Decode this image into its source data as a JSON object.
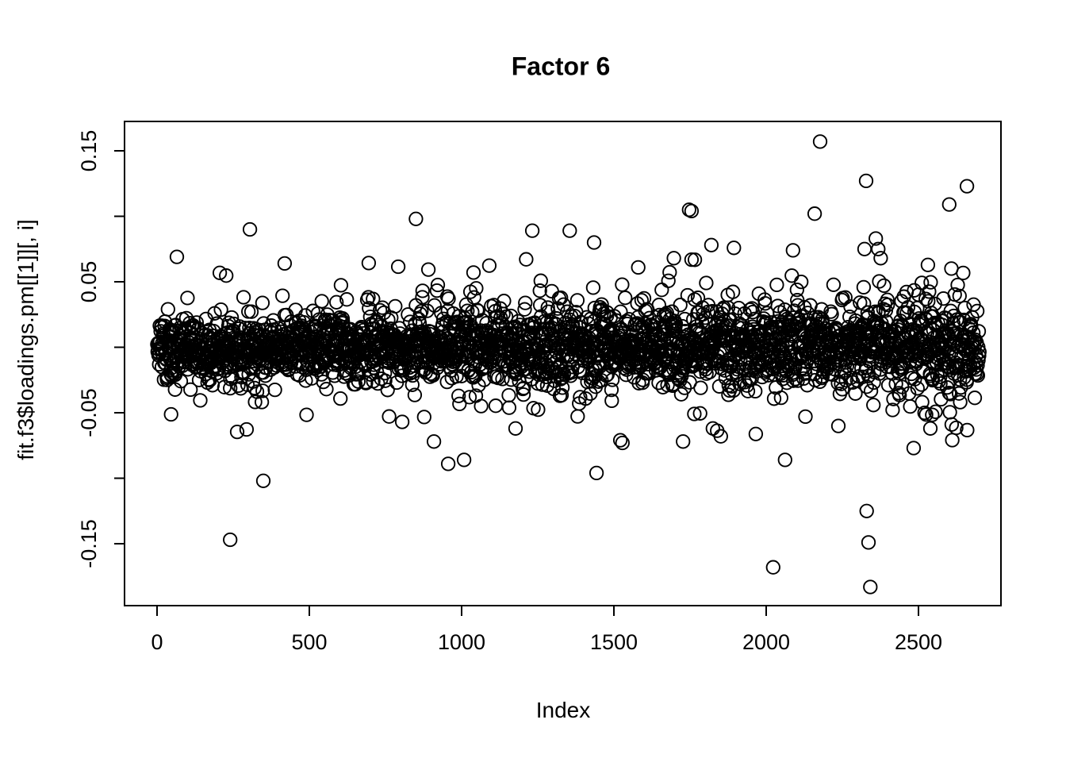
{
  "chart_data": {
    "type": "scatter",
    "title": "Factor 6",
    "xlabel": "Index",
    "ylabel": "fit.f3$loadings.pm[[1]][, i]",
    "marker": "open-circle",
    "marker_color": "#000000",
    "background_color": "#ffffff",
    "grid": false,
    "legend": null,
    "n_points": 2700,
    "x_range": [
      1,
      2700
    ],
    "xlim": [
      -107,
      2808
    ],
    "ylim": [
      -0.197,
      0.172
    ],
    "x_axis": {
      "ticks": [
        {
          "value": 0,
          "label": "0"
        },
        {
          "value": 500,
          "label": "500"
        },
        {
          "value": 1000,
          "label": "1000"
        },
        {
          "value": 1500,
          "label": "1500"
        },
        {
          "value": 2000,
          "label": "2000"
        },
        {
          "value": 2500,
          "label": "2500"
        }
      ]
    },
    "y_axis": {
      "ticks": [
        {
          "value": 0.15,
          "label": "0.15"
        },
        {
          "value": 0.1,
          "label": ""
        },
        {
          "value": 0.05,
          "label": "0.05"
        },
        {
          "value": 0.0,
          "label": ""
        },
        {
          "value": -0.05,
          "label": "-0.05"
        },
        {
          "value": -0.1,
          "label": ""
        },
        {
          "value": -0.15,
          "label": "-0.15"
        }
      ]
    },
    "band": {
      "description": "dense horizontal band of loadings centered at 0, spread widening from left (sd~0.011) to right (sd~0.018)",
      "center": 0.0,
      "sd_left": 0.011,
      "sd_right": 0.018,
      "mixture": [
        {
          "weight": 0.87,
          "sd_multiplier": 1.0
        },
        {
          "weight": 0.1,
          "sd_multiplier": 1.8
        },
        {
          "weight": 0.03,
          "sd_multiplier": 2.8
        }
      ],
      "generated_clamp": 0.105
    },
    "outliers": [
      [
        65,
        0.069
      ],
      [
        305,
        0.09
      ],
      [
        419,
        0.064
      ],
      [
        850,
        0.098
      ],
      [
        1039,
        0.057
      ],
      [
        1232,
        0.089
      ],
      [
        1355,
        0.089
      ],
      [
        1435,
        0.08
      ],
      [
        1580,
        0.061
      ],
      [
        1697,
        0.068
      ],
      [
        1755,
        0.104
      ],
      [
        1820,
        0.078
      ],
      [
        2088,
        0.074
      ],
      [
        2159,
        0.102
      ],
      [
        2177,
        0.157
      ],
      [
        2323,
        0.075
      ],
      [
        2328,
        0.127
      ],
      [
        2360,
        0.083
      ],
      [
        2368,
        0.075
      ],
      [
        2376,
        0.068
      ],
      [
        2601,
        0.109
      ],
      [
        2659,
        0.123
      ],
      [
        240,
        -0.147
      ],
      [
        349,
        -0.102
      ],
      [
        805,
        -0.057
      ],
      [
        956,
        -0.089
      ],
      [
        1008,
        -0.086
      ],
      [
        1177,
        -0.062
      ],
      [
        1443,
        -0.096
      ],
      [
        1521,
        -0.071
      ],
      [
        1528,
        -0.073
      ],
      [
        1727,
        -0.072
      ],
      [
        1825,
        -0.062
      ],
      [
        1851,
        -0.068
      ],
      [
        2023,
        -0.168
      ],
      [
        2062,
        -0.086
      ],
      [
        2330,
        -0.125
      ],
      [
        2336,
        -0.149
      ],
      [
        2342,
        -0.183
      ],
      [
        2484,
        -0.077
      ],
      [
        2539,
        -0.062
      ]
    ]
  }
}
